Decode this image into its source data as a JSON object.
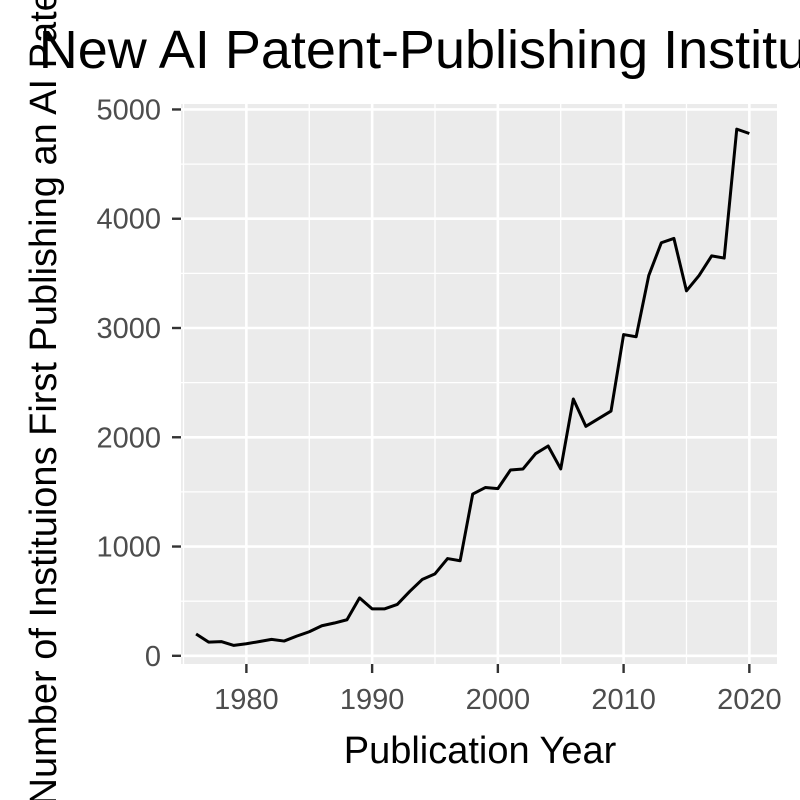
{
  "chart_data": {
    "type": "line",
    "title": "New AI Patent-Publishing Institutions",
    "xlabel": "Publication Year",
    "ylabel": "Number of Instituions First Publishing an AI Patent",
    "xlim": [
      1974.8,
      2022.2
    ],
    "ylim": [
      -75,
      5050
    ],
    "x_ticks": [
      1980,
      1990,
      2000,
      2010,
      2020
    ],
    "y_ticks": [
      0,
      1000,
      2000,
      3000,
      4000,
      5000
    ],
    "x_tick_labels": [
      "1980",
      "1990",
      "2000",
      "2010",
      "2020"
    ],
    "y_tick_labels": [
      "0",
      "1000",
      "2000",
      "3000",
      "4000",
      "5000"
    ],
    "grid": true,
    "background": "#EBEBEB",
    "grid_color": "#FFFFFF",
    "line_color": "#000000",
    "series": [
      {
        "x": [
          1976,
          1977,
          1978,
          1979,
          1980,
          1981,
          1982,
          1983,
          1984,
          1985,
          1986,
          1987,
          1988,
          1989,
          1990,
          1991,
          1992,
          1993,
          1994,
          1995,
          1996,
          1997,
          1998,
          1999,
          2000,
          2001,
          2002,
          2003,
          2004,
          2005,
          2006,
          2007,
          2008,
          2009,
          2010,
          2011,
          2012,
          2013,
          2014,
          2015,
          2016,
          2017,
          2018,
          2019,
          2020
        ],
        "values": [
          200,
          125,
          130,
          95,
          110,
          130,
          150,
          135,
          180,
          220,
          275,
          300,
          330,
          530,
          430,
          430,
          470,
          590,
          700,
          750,
          890,
          870,
          1480,
          1540,
          1530,
          1700,
          1710,
          1850,
          1920,
          1710,
          2350,
          2100,
          2170,
          2240,
          2940,
          2920,
          3480,
          3780,
          3820,
          3340,
          3480,
          3660,
          3640,
          4820,
          4780
        ]
      }
    ]
  }
}
